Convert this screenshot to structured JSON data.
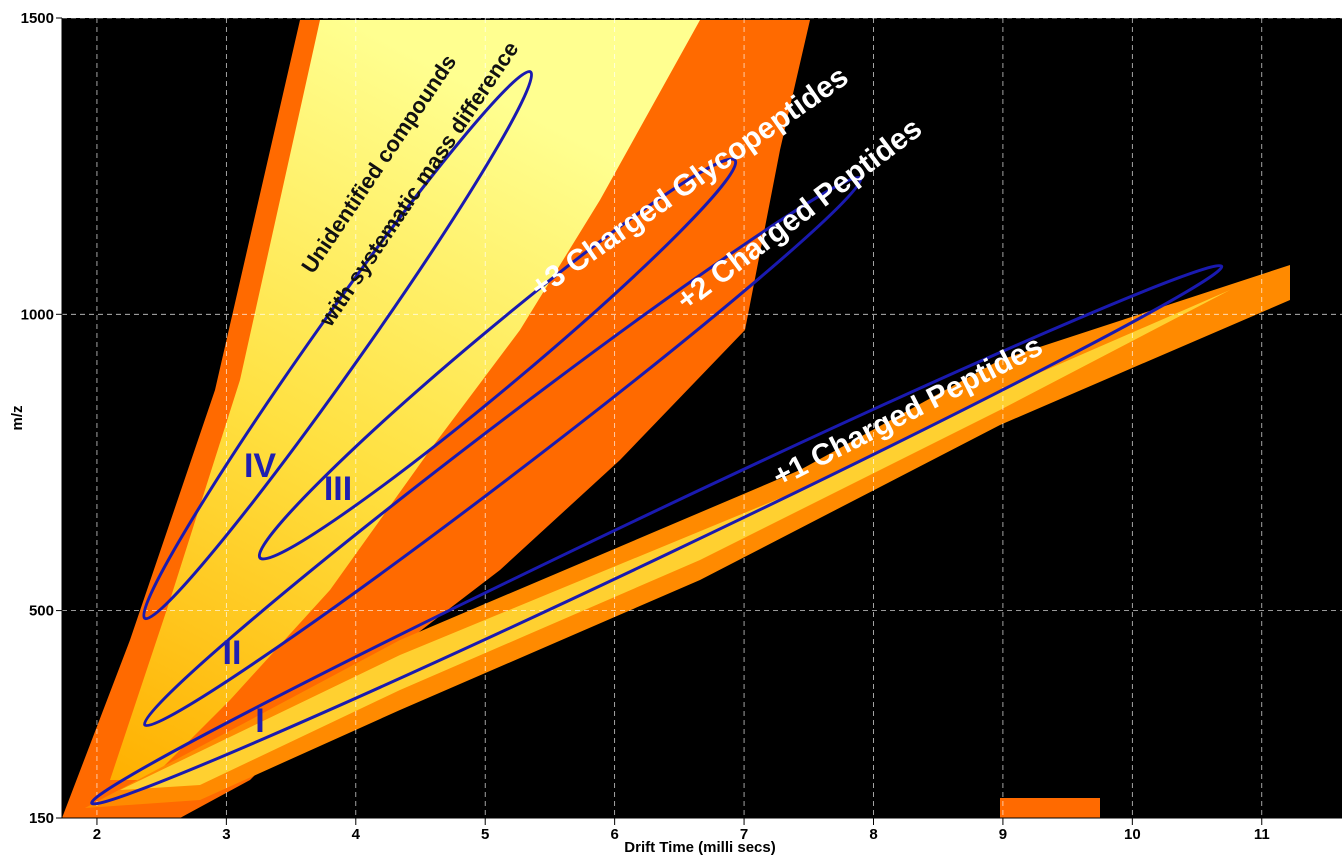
{
  "chart_data": {
    "type": "heatmap",
    "x_label": "Drift Time (milli secs)",
    "y_label": "m/z",
    "xlim": [
      1.73,
      11.62
    ],
    "ylim": [
      150,
      1500
    ],
    "xticks": [
      2,
      3,
      4,
      5,
      6,
      7,
      8,
      9,
      10,
      11
    ],
    "yticks": [
      150,
      500,
      1000,
      1500
    ],
    "grid": true,
    "regions": [
      {
        "label": "I",
        "x": [
          1.96,
          10.69
        ],
        "y": [
          175,
          1081
        ]
      },
      {
        "label": "II",
        "x": [
          2.37,
          7.9
        ],
        "y": [
          307,
          1230
        ]
      },
      {
        "label": "III",
        "x": [
          3.26,
          6.93
        ],
        "y": [
          589,
          1260
        ]
      },
      {
        "label": "IV",
        "x": [
          2.37,
          5.35
        ],
        "y": [
          487,
          1409
        ]
      }
    ],
    "annotations": [
      "Unidentified compounds",
      "with systematic mass difference",
      "+3 Charged Glycopeptides",
      "+2 Charged Peptides",
      "+1 Charged Peptides"
    ]
  }
}
